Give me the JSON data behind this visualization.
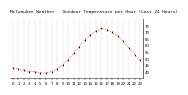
{
  "title": "Milwaukee Weather   Outdoor Temperature per Hour (Last 24 Hours)",
  "hours": [
    0,
    1,
    2,
    3,
    4,
    5,
    6,
    7,
    8,
    9,
    10,
    11,
    12,
    13,
    14,
    15,
    16,
    17,
    18,
    19,
    20,
    21,
    22,
    23
  ],
  "temps": [
    43,
    42,
    41,
    40,
    40,
    39,
    39,
    40,
    42,
    45,
    49,
    54,
    59,
    64,
    68,
    71,
    73,
    72,
    70,
    67,
    63,
    58,
    53,
    49
  ],
  "ylim": [
    35,
    80
  ],
  "yticks": [
    40,
    45,
    50,
    55,
    60,
    65,
    70,
    75
  ],
  "line_color": "#cc0000",
  "marker_color": "#cc0000",
  "bg_color": "#ffffff",
  "grid_color": "#888888",
  "title_fontsize": 3.2,
  "tick_fontsize": 2.8
}
